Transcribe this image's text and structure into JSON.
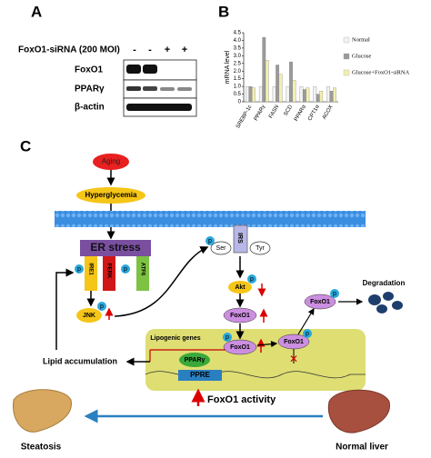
{
  "panel_a": {
    "label": "A",
    "treatment": "FoxO1-siRNA (200 MOI)",
    "signs": [
      "-",
      "-",
      "+",
      "+"
    ],
    "rows": [
      "FoxO1",
      "PPARγ",
      "β-actin"
    ]
  },
  "panel_b_label": "B",
  "chart_data": {
    "type": "bar",
    "y_label": "mRNA level",
    "categories": [
      "SREBP-1c",
      "PPARγ",
      "FASN",
      "SCD",
      "PPARα",
      "CPT1α",
      "ACOX"
    ],
    "series": [
      {
        "name": "Normal",
        "color": "#f2f2f2",
        "values": [
          1,
          1,
          1,
          1,
          1,
          1,
          1
        ]
      },
      {
        "name": "Glucose",
        "color": "#9a9a9a",
        "values": [
          1.0,
          4.2,
          2.4,
          2.6,
          0.8,
          0.5,
          0.7
        ]
      },
      {
        "name": "Glucose+FoxO1-siRNA",
        "color": "#f3efb0",
        "values": [
          0.9,
          2.7,
          1.8,
          1.4,
          0.9,
          0.7,
          0.9
        ]
      }
    ],
    "ylim": [
      0,
      4.5
    ],
    "yticks": [
      0,
      {
        "value": 0.5,
        "label": "0.5"
      },
      {
        "value": 1,
        "label": "1.0"
      },
      {
        "value": 1.5,
        "label": "1.5"
      },
      {
        "value": 2,
        "label": "2.0"
      },
      {
        "value": 2.5,
        "label": "2.5"
      },
      {
        "value": 3,
        "label": "3.0"
      },
      {
        "value": 3.5,
        "label": "3.5"
      },
      {
        "value": 4,
        "label": "4.0"
      },
      {
        "value": 4.5,
        "label": "4.5"
      }
    ]
  },
  "panel_c": {
    "label": "C",
    "aging": "Aging",
    "hyperglycemia": "Hyperglycemia",
    "er_stress": "ER stress",
    "ire1": "IRE1",
    "perk": "PERK",
    "atf6": "ATF6",
    "p": "p",
    "irs": "IRS",
    "ser": "Ser",
    "tyr": "Tyr",
    "akt": "Akt",
    "foxo1": "FoxO1",
    "jnk": "JNK",
    "degradation": "Degradation",
    "lipogenic": "Lipogenic genes",
    "ppar": "PPARγ",
    "ppre": "PPRE",
    "activity": "FoxO1 activity",
    "lipid": "Lipid accumulation",
    "steatosis": "Steatosis",
    "normal_liver": "Normal liver"
  }
}
